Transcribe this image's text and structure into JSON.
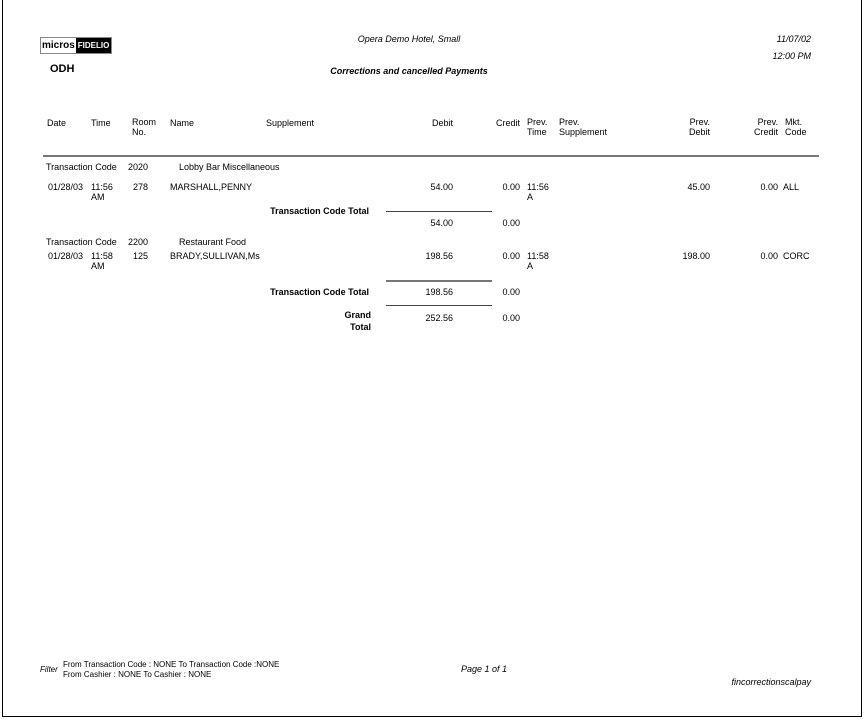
{
  "header": {
    "logo": {
      "left": "micros",
      "right": "FIDELIO"
    },
    "property_code": "ODH",
    "hotel_name": "Opera Demo Hotel, Small",
    "report_title": "Corrections and cancelled Payments",
    "date": "11/07/02",
    "time": "12:00 PM"
  },
  "columns": {
    "date": "Date",
    "time": "Time",
    "room_1": "Room",
    "room_2": "No.",
    "name": "Name",
    "supplement": "Supplement",
    "debit": "Debit",
    "credit": "Credit",
    "prev_time_1": "Prev.",
    "prev_time_2": "Time",
    "prev_supp_1": "Prev.",
    "prev_supp_2": "Supplement",
    "prev_debit_1": "Prev.",
    "prev_debit_2": "Debit",
    "prev_credit_1": "Prev.",
    "prev_credit_2": "Credit",
    "mkt_1": "Mkt.",
    "mkt_2": "Code"
  },
  "groups": [
    {
      "label": "Transaction Code",
      "code": "2020",
      "description": "Lobby Bar Miscellaneous",
      "rows": [
        {
          "date": "01/28/03",
          "time_1": "11:56",
          "time_2": "AM",
          "room": "278",
          "name": "MARSHALL,PENNY",
          "supplement": "",
          "debit": "54.00",
          "credit": "0.00",
          "prev_time_1": "11:56",
          "prev_time_2": "A",
          "prev_supplement": "",
          "prev_debit": "45.00",
          "prev_credit": "0.00",
          "mkt_code": "ALL"
        }
      ],
      "total_label": "Transaction Code Total",
      "total_debit": "54.00",
      "total_credit": "0.00"
    },
    {
      "label": "Transaction Code",
      "code": "2200",
      "description": "Restaurant Food",
      "rows": [
        {
          "date": "01/28/03",
          "time_1": "11:58",
          "time_2": "AM",
          "room": "125",
          "name": "BRADY,SULLIVAN,Ms",
          "supplement": "",
          "debit": "198.56",
          "credit": "0.00",
          "prev_time_1": "11:58",
          "prev_time_2": "A",
          "prev_supplement": "",
          "prev_debit": "198.00",
          "prev_credit": "0.00",
          "mkt_code": "CORC"
        }
      ],
      "total_label": "Transaction Code Total",
      "total_debit": "198.56",
      "total_credit": "0.00"
    }
  ],
  "grand_total": {
    "label_1": "Grand",
    "label_2": "Total",
    "debit": "252.56",
    "credit": "0.00"
  },
  "footer": {
    "filter_label": "Filter",
    "filter_line_1": "From Transaction Code : NONE To Transaction Code :NONE",
    "filter_line_2": "From Cashier : NONE To Cashier : NONE",
    "page": "Page 1 of 1",
    "report_name": "fincorrectionscalpay"
  }
}
